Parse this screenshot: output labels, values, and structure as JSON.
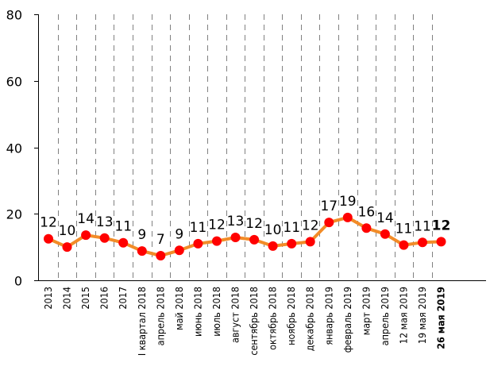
{
  "chart_data": {
    "type": "line",
    "title": "",
    "xlabel": "",
    "ylabel": "",
    "ylim": [
      0,
      80
    ],
    "yticks": [
      0,
      20,
      40,
      60,
      80
    ],
    "grid": "vertical-dashed",
    "categories": [
      "2013",
      "2014",
      "2015",
      "2016",
      "2017",
      "I квартал 2018",
      "апрель 2018",
      "май 2018",
      "июнь 2018",
      "июль 2018",
      "август 2018",
      "сентябрь 2018",
      "октябрь 2018",
      "ноябрь 2018",
      "декабрь 2018",
      "январь 2019",
      "февраль 2019",
      "март 2019",
      "апрель 2019",
      "12 мая 2019",
      "19 мая 2019",
      "26 мая 2019"
    ],
    "values": [
      12.5,
      10,
      13.6,
      12.7,
      11.3,
      8.8,
      7.4,
      9,
      11,
      11.8,
      12.9,
      12.2,
      10.3,
      11,
      11.6,
      17.4,
      18.9,
      15.7,
      13.9,
      10.6,
      11.4,
      11.6
    ],
    "data_labels": [
      "12",
      "10",
      "14",
      "13",
      "11",
      "9",
      "7",
      "9",
      "11",
      "12",
      "13",
      "12",
      "10",
      "11",
      "12",
      "17",
      "19",
      "16",
      "14",
      "11",
      "11",
      "12"
    ],
    "highlight_last": true,
    "colors": {
      "line": "#f28c28",
      "marker": "#ff0000",
      "axis": "#000000",
      "grid": "#808080"
    }
  }
}
